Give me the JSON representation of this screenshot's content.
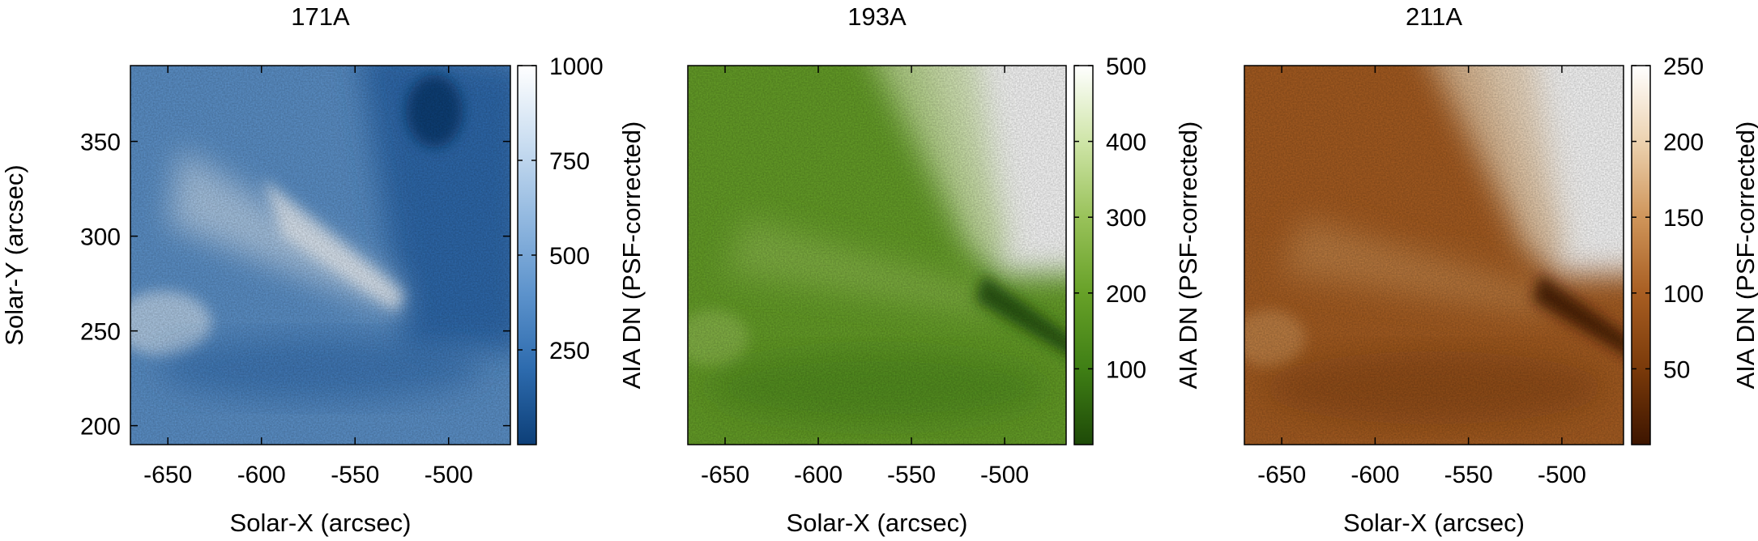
{
  "chart_data": [
    {
      "type": "heatmap",
      "title": "171A",
      "xlabel": "Solar-X (arcsec)",
      "ylabel": "Solar-Y (arcsec)",
      "xlim": [
        -670,
        -467
      ],
      "ylim": [
        190,
        390
      ],
      "x_ticks": [
        -650,
        -600,
        -550,
        -500
      ],
      "y_ticks": [
        200,
        250,
        300,
        350
      ],
      "colorbar": {
        "label": "AIA DN (PSF-corrected)",
        "min": 0,
        "max": 1000,
        "ticks": [
          250,
          500,
          750,
          1000
        ],
        "colors": [
          "#0d3f78",
          "#2d6bae",
          "#5d93cc",
          "#93b9e0",
          "#cbdef1",
          "#ffffff"
        ]
      }
    },
    {
      "type": "heatmap",
      "title": "193A",
      "xlabel": "Solar-X (arcsec)",
      "ylabel": "",
      "xlim": [
        -670,
        -467
      ],
      "ylim": [
        190,
        390
      ],
      "x_ticks": [
        -650,
        -600,
        -550,
        -500
      ],
      "y_ticks": [],
      "colorbar": {
        "label": "AIA DN (PSF-corrected)",
        "min": 0,
        "max": 500,
        "ticks": [
          100,
          200,
          300,
          400,
          500
        ],
        "colors": [
          "#1e4a08",
          "#3f7f15",
          "#67a128",
          "#99c25a",
          "#cfe5a8",
          "#ffffff"
        ]
      }
    },
    {
      "type": "heatmap",
      "title": "211A",
      "xlabel": "Solar-X (arcsec)",
      "ylabel": "",
      "xlim": [
        -670,
        -467
      ],
      "ylim": [
        190,
        390
      ],
      "x_ticks": [
        -650,
        -600,
        -550,
        -500
      ],
      "y_ticks": [],
      "colorbar": {
        "label": "AIA DN (PSF-corrected)",
        "min": 0,
        "max": 250,
        "ticks": [
          50,
          100,
          150,
          200,
          250
        ],
        "colors": [
          "#3d1500",
          "#7a3a0a",
          "#a85e22",
          "#cf955a",
          "#ecd2b0",
          "#ffffff"
        ]
      }
    }
  ]
}
